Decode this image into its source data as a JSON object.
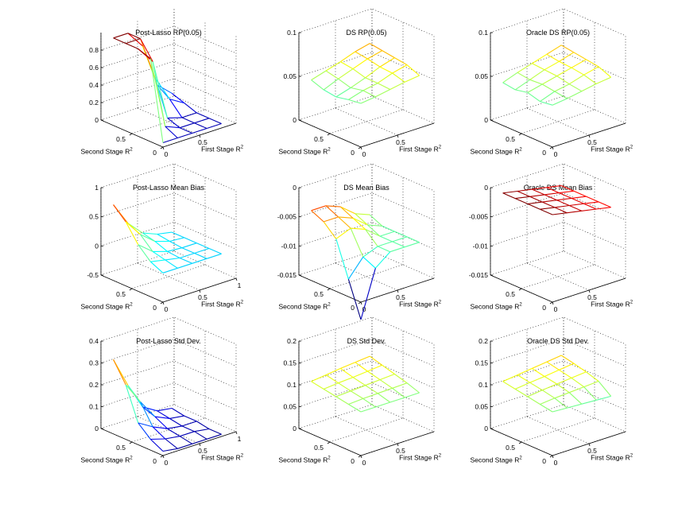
{
  "figure": {
    "rows": 3,
    "cols": 3
  },
  "chart_data": [
    {
      "type": "surface3d",
      "title": "Post-Lasso RP(0.05)",
      "xlabel": "First Stage R",
      "ylabel": "Second Stage R",
      "label_exponent": "2",
      "zlim": [
        0,
        1
      ],
      "z_ticks": [
        {
          "value": 0,
          "label": "0"
        },
        {
          "value": 0.2,
          "label": "0.2"
        },
        {
          "value": 0.4,
          "label": "0.4"
        },
        {
          "value": 0.6,
          "label": "0.6"
        },
        {
          "value": 0.8,
          "label": "0.8"
        }
      ],
      "x_ticks": [
        {
          "value": 0,
          "label": "0"
        },
        {
          "value": 0.5,
          "label": "0.5"
        }
      ],
      "y_ticks": [
        {
          "value": 0.5,
          "label": "0.5"
        },
        {
          "value": 0,
          "label": "0"
        }
      ],
      "grid": [
        0,
        0.2,
        0.4,
        0.6,
        0.8
      ],
      "z": [
        [
          0.05,
          0.05,
          0.05,
          0.05,
          0.05
        ],
        [
          0.95,
          0.12,
          0.05,
          0.05,
          0.05
        ],
        [
          1.0,
          0.8,
          0.1,
          0.05,
          0.05
        ],
        [
          1.0,
          1.0,
          0.5,
          0.2,
          0.1
        ],
        [
          1.0,
          1.0,
          0.8,
          0.3,
          0.15
        ]
      ]
    },
    {
      "type": "surface3d",
      "title": "DS RP(0.05)",
      "xlabel": "First Stage R",
      "ylabel": "Second Stage R",
      "label_exponent": "2",
      "zlim": [
        0,
        0.1
      ],
      "z_ticks": [
        {
          "value": 0,
          "label": "0"
        },
        {
          "value": 0.05,
          "label": "0.05"
        },
        {
          "value": 0.1,
          "label": "0.1"
        }
      ],
      "x_ticks": [
        {
          "value": 0,
          "label": "0"
        },
        {
          "value": 0.5,
          "label": "0.5"
        }
      ],
      "y_ticks": [
        {
          "value": 0.5,
          "label": "0.5"
        },
        {
          "value": 0,
          "label": "0"
        }
      ],
      "grid": [
        0,
        0.2,
        0.4,
        0.6,
        0.8
      ],
      "z": [
        [
          0.05,
          0.052,
          0.055,
          0.058,
          0.06
        ],
        [
          0.048,
          0.053,
          0.056,
          0.062,
          0.066
        ],
        [
          0.045,
          0.05,
          0.056,
          0.063,
          0.068
        ],
        [
          0.047,
          0.054,
          0.06,
          0.066,
          0.07
        ],
        [
          0.052,
          0.057,
          0.062,
          0.068,
          0.072
        ]
      ]
    },
    {
      "type": "surface3d",
      "title": "Oracle DS RP(0.05)",
      "xlabel": "First Stage R",
      "ylabel": "Second Stage R",
      "label_exponent": "2",
      "zlim": [
        0,
        0.1
      ],
      "z_ticks": [
        {
          "value": 0,
          "label": "0"
        },
        {
          "value": 0.05,
          "label": "0.05"
        },
        {
          "value": 0.1,
          "label": "0.1"
        }
      ],
      "x_ticks": [
        {
          "value": 0,
          "label": "0"
        },
        {
          "value": 0.5,
          "label": "0.5"
        }
      ],
      "y_ticks": [
        {
          "value": 0.5,
          "label": "0.5"
        },
        {
          "value": 0,
          "label": "0"
        }
      ],
      "grid": [
        0,
        0.2,
        0.4,
        0.6,
        0.8
      ],
      "z": [
        [
          0.048,
          0.05,
          0.053,
          0.056,
          0.058
        ],
        [
          0.046,
          0.052,
          0.055,
          0.06,
          0.064
        ],
        [
          0.05,
          0.054,
          0.058,
          0.062,
          0.066
        ],
        [
          0.047,
          0.053,
          0.059,
          0.063,
          0.068
        ],
        [
          0.049,
          0.055,
          0.06,
          0.065,
          0.07
        ]
      ]
    },
    {
      "type": "surface3d",
      "title": "Post-Lasso Mean Bias",
      "xlabel": "First Stage R",
      "ylabel": "Second Stage R",
      "label_exponent": "2",
      "zlim": [
        -0.5,
        1
      ],
      "z_ticks": [
        {
          "value": -0.5,
          "label": "-0.5"
        },
        {
          "value": 0,
          "label": "0"
        },
        {
          "value": 0.5,
          "label": "0.5"
        },
        {
          "value": 1,
          "label": "1"
        }
      ],
      "x_ticks": [
        {
          "value": 0,
          "label": "0"
        },
        {
          "value": 0.5,
          "label": "0.5"
        },
        {
          "value": 1,
          "label": "1"
        }
      ],
      "y_ticks": [
        {
          "value": 0.5,
          "label": "0.5"
        },
        {
          "value": 0,
          "label": "0"
        }
      ],
      "grid": [
        0,
        0.2,
        0.4,
        0.6,
        0.8
      ],
      "z": [
        [
          0.0,
          0.0,
          0.0,
          0.0,
          0.0
        ],
        [
          0.1,
          0.05,
          0.0,
          0.0,
          0.0
        ],
        [
          0.3,
          0.1,
          0.02,
          0.0,
          0.0
        ],
        [
          0.6,
          0.3,
          0.1,
          0.02,
          0.0
        ],
        [
          0.8,
          0.4,
          0.15,
          0.05,
          0.0
        ]
      ]
    },
    {
      "type": "surface3d",
      "title": "DS Mean Bias",
      "xlabel": "First Stage R",
      "ylabel": "Second Stage R",
      "label_exponent": "2",
      "zlim": [
        -0.015,
        0
      ],
      "z_ticks": [
        {
          "value": -0.015,
          "label": "-0.015"
        },
        {
          "value": -0.01,
          "label": "-0.01"
        },
        {
          "value": -0.005,
          "label": "-0.005"
        },
        {
          "value": 0,
          "label": "0"
        }
      ],
      "x_ticks": [
        {
          "value": 0,
          "label": "0"
        },
        {
          "value": 0.5,
          "label": "0.5"
        }
      ],
      "y_ticks": [
        {
          "value": 0.5,
          "label": "0.5"
        },
        {
          "value": 0,
          "label": "0"
        }
      ],
      "grid": [
        0,
        0.2,
        0.4,
        0.6,
        0.8
      ],
      "z": [
        [
          -0.018,
          -0.01,
          -0.008,
          -0.008,
          -0.008
        ],
        [
          -0.012,
          -0.009,
          -0.008,
          -0.008,
          -0.008
        ],
        [
          -0.006,
          -0.005,
          -0.006,
          -0.008,
          -0.008
        ],
        [
          -0.004,
          -0.004,
          -0.005,
          -0.007,
          -0.008
        ],
        [
          -0.003,
          -0.003,
          -0.004,
          -0.006,
          -0.007
        ]
      ]
    },
    {
      "type": "surface3d",
      "title": "Oracle DS Mean Bias",
      "xlabel": "First Stage R",
      "ylabel": "Second Stage R",
      "label_exponent": "2",
      "zlim": [
        -0.015,
        0
      ],
      "z_ticks": [
        {
          "value": -0.015,
          "label": "-0.015"
        },
        {
          "value": -0.01,
          "label": "-0.01"
        },
        {
          "value": -0.005,
          "label": "-0.005"
        },
        {
          "value": 0,
          "label": "0"
        }
      ],
      "x_ticks": [
        {
          "value": 0,
          "label": "0"
        },
        {
          "value": 0.5,
          "label": "0.5"
        }
      ],
      "y_ticks": [
        {
          "value": 0.5,
          "label": "0.5"
        },
        {
          "value": 0,
          "label": "0"
        }
      ],
      "grid": [
        0,
        0.2,
        0.4,
        0.6,
        0.8
      ],
      "z": [
        [
          0.0,
          -0.0005,
          -0.001,
          -0.0015,
          -0.002
        ],
        [
          0.0,
          -0.0005,
          -0.001,
          -0.0015,
          -0.002
        ],
        [
          0.0,
          -0.0005,
          -0.001,
          -0.0015,
          -0.002
        ],
        [
          0.0,
          -0.0005,
          -0.001,
          -0.0015,
          -0.002
        ],
        [
          0.0,
          -0.0005,
          -0.001,
          -0.0015,
          -0.002
        ]
      ]
    },
    {
      "type": "surface3d",
      "title": "Post-Lasso Std Dev.",
      "xlabel": "First Stage R",
      "ylabel": "Second Stage R",
      "label_exponent": "2",
      "zlim": [
        0,
        0.4
      ],
      "z_ticks": [
        {
          "value": 0,
          "label": "0"
        },
        {
          "value": 0.1,
          "label": "0.1"
        },
        {
          "value": 0.2,
          "label": "0.2"
        },
        {
          "value": 0.3,
          "label": "0.3"
        },
        {
          "value": 0.4,
          "label": "0.4"
        }
      ],
      "x_ticks": [
        {
          "value": 0,
          "label": "0"
        },
        {
          "value": 0.5,
          "label": "0.5"
        },
        {
          "value": 1,
          "label": "1"
        }
      ],
      "y_ticks": [
        {
          "value": 0.5,
          "label": "0.5"
        },
        {
          "value": 0,
          "label": "0"
        }
      ],
      "grid": [
        0,
        0.2,
        0.4,
        0.6,
        0.8
      ],
      "z": [
        [
          0.02,
          0.01,
          0.01,
          0.01,
          0.01
        ],
        [
          0.05,
          0.03,
          0.02,
          0.02,
          0.01
        ],
        [
          0.1,
          0.06,
          0.03,
          0.02,
          0.02
        ],
        [
          0.25,
          0.15,
          0.06,
          0.03,
          0.02
        ],
        [
          0.34,
          0.2,
          0.08,
          0.04,
          0.03
        ]
      ]
    },
    {
      "type": "surface3d",
      "title": "DS Std Dev.",
      "xlabel": "First Stage R",
      "ylabel": "Second Stage R",
      "label_exponent": "2",
      "zlim": [
        0,
        0.2
      ],
      "z_ticks": [
        {
          "value": 0,
          "label": "0"
        },
        {
          "value": 0.05,
          "label": "0.05"
        },
        {
          "value": 0.1,
          "label": "0.1"
        },
        {
          "value": 0.15,
          "label": "0.15"
        },
        {
          "value": 0.2,
          "label": "0.2"
        }
      ],
      "x_ticks": [
        {
          "value": 0,
          "label": "0"
        },
        {
          "value": 0.5,
          "label": "0.5"
        }
      ],
      "y_ticks": [
        {
          "value": 0.5,
          "label": "0.5"
        },
        {
          "value": 0,
          "label": "0"
        }
      ],
      "grid": [
        0,
        0.2,
        0.4,
        0.6,
        0.8
      ],
      "z": [
        [
          0.1,
          0.1,
          0.1,
          0.1,
          0.1
        ],
        [
          0.105,
          0.107,
          0.108,
          0.109,
          0.11
        ],
        [
          0.11,
          0.112,
          0.114,
          0.116,
          0.118
        ],
        [
          0.115,
          0.118,
          0.12,
          0.123,
          0.126
        ],
        [
          0.12,
          0.124,
          0.128,
          0.131,
          0.134
        ]
      ]
    },
    {
      "type": "surface3d",
      "title": "Oracle DS Std Dev.",
      "xlabel": "First Stage R",
      "ylabel": "Second Stage R",
      "label_exponent": "2",
      "zlim": [
        0,
        0.2
      ],
      "z_ticks": [
        {
          "value": 0,
          "label": "0"
        },
        {
          "value": 0.05,
          "label": "0.05"
        },
        {
          "value": 0.1,
          "label": "0.1"
        },
        {
          "value": 0.15,
          "label": "0.15"
        },
        {
          "value": 0.2,
          "label": "0.2"
        }
      ],
      "x_ticks": [
        {
          "value": 0,
          "label": "0"
        },
        {
          "value": 0.5,
          "label": "0.5"
        }
      ],
      "y_ticks": [
        {
          "value": 0.5,
          "label": "0.5"
        },
        {
          "value": 0,
          "label": "0"
        }
      ],
      "grid": [
        0,
        0.2,
        0.4,
        0.6,
        0.8
      ],
      "z": [
        [
          0.1,
          0.098,
          0.096,
          0.094,
          0.092
        ],
        [
          0.105,
          0.108,
          0.11,
          0.112,
          0.114
        ],
        [
          0.11,
          0.114,
          0.117,
          0.12,
          0.123
        ],
        [
          0.115,
          0.119,
          0.122,
          0.126,
          0.13
        ],
        [
          0.12,
          0.124,
          0.128,
          0.132,
          0.136
        ]
      ]
    }
  ]
}
